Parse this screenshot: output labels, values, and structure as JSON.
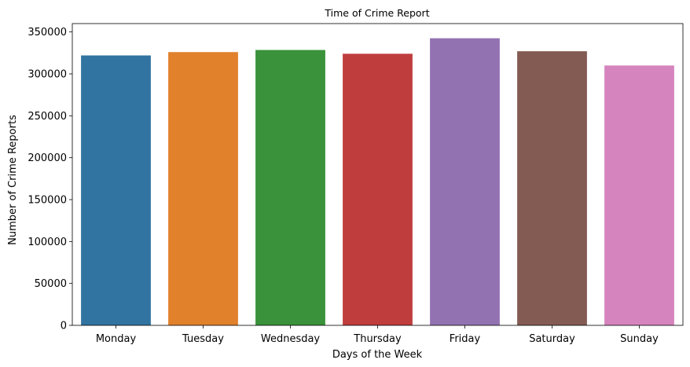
{
  "chart_data": {
    "type": "bar",
    "title": "Time of Crime Report",
    "xlabel": "Days of the Week",
    "ylabel": "Number of Crime Reports",
    "categories": [
      "Monday",
      "Tuesday",
      "Wednesday",
      "Thursday",
      "Friday",
      "Saturday",
      "Sunday"
    ],
    "values": [
      322000,
      326000,
      328500,
      324000,
      342500,
      327000,
      310000
    ],
    "colors": [
      "#3274a1",
      "#e1812c",
      "#3a923a",
      "#c03d3e",
      "#9372b2",
      "#845b53",
      "#d684bd"
    ],
    "ylim": [
      0,
      360000
    ],
    "yticks": [
      0,
      50000,
      100000,
      150000,
      200000,
      250000,
      300000,
      350000
    ],
    "ytick_labels": [
      "0",
      "50000",
      "100000",
      "150000",
      "200000",
      "250000",
      "300000",
      "350000"
    ],
    "grid": false,
    "legend": "none"
  }
}
